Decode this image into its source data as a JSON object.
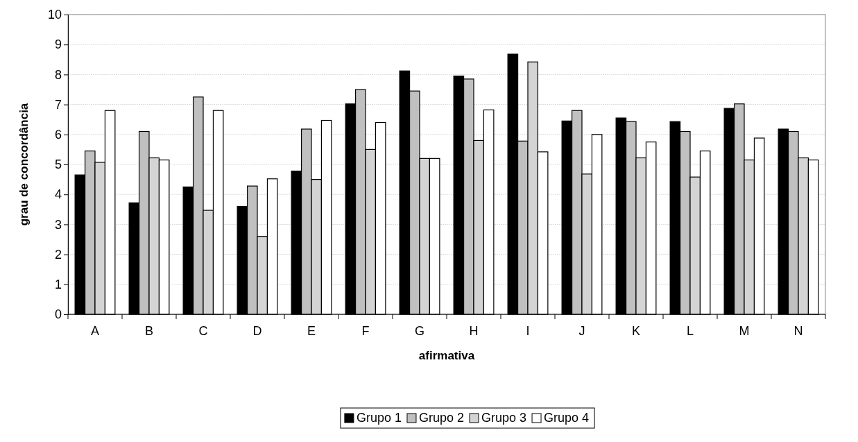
{
  "chart_data": {
    "type": "bar",
    "xlabel": "afirmativa",
    "ylabel": "grau de concordância",
    "categories": [
      "A",
      "B",
      "C",
      "D",
      "E",
      "F",
      "G",
      "H",
      "I",
      "J",
      "K",
      "L",
      "M",
      "N"
    ],
    "series": [
      {
        "name": "Grupo 1",
        "color": "#000000",
        "values": [
          4.65,
          3.72,
          4.25,
          3.6,
          4.78,
          7.02,
          8.12,
          7.95,
          8.68,
          6.45,
          6.55,
          6.43,
          6.87,
          6.18
        ]
      },
      {
        "name": "Grupo 2",
        "color": "#c0c0c0",
        "values": [
          5.45,
          6.1,
          7.25,
          4.28,
          6.18,
          7.5,
          7.45,
          7.85,
          5.78,
          6.8,
          6.43,
          6.1,
          7.02,
          6.1
        ]
      },
      {
        "name": "Grupo 3",
        "color": "#d4d4d4",
        "values": [
          5.07,
          5.22,
          3.47,
          2.6,
          4.5,
          5.5,
          5.2,
          5.8,
          8.42,
          4.68,
          5.22,
          4.58,
          5.15,
          5.22
        ]
      },
      {
        "name": "Grupo 4",
        "color": "#ffffff",
        "values": [
          6.8,
          5.15,
          6.8,
          4.52,
          6.47,
          6.4,
          5.2,
          6.82,
          5.42,
          6.0,
          5.75,
          5.45,
          5.88,
          5.15
        ]
      }
    ],
    "ylim": [
      0,
      10
    ],
    "yticks": [
      0,
      1,
      2,
      3,
      4,
      5,
      6,
      7,
      8,
      9,
      10
    ],
    "grid": "y",
    "legend": "bottom"
  }
}
